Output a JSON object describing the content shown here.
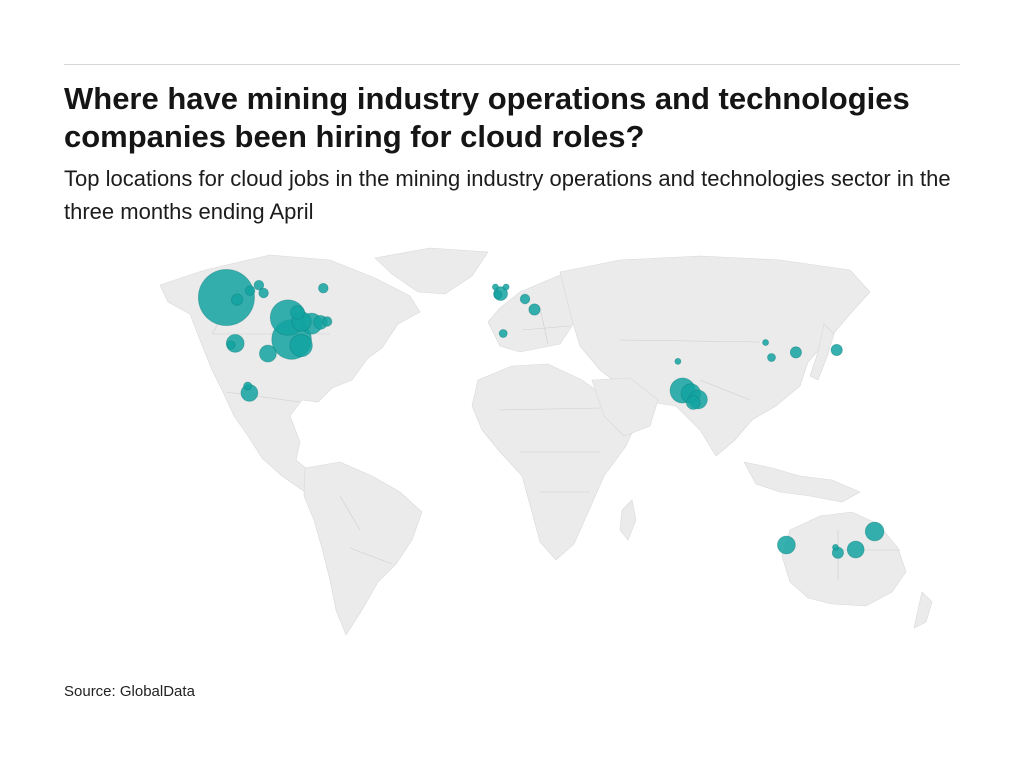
{
  "header": {
    "title": "Where have mining industry operations and technologies companies been hiring for cloud roles?",
    "subtitle": "Top locations for cloud jobs in the mining industry operations and technologies sector in the three months ending April"
  },
  "footer": {
    "source": "Source: GlobalData"
  },
  "colors": {
    "bubble": "#13a3a1",
    "land": "#ebebeb",
    "border": "#d9d9d9"
  },
  "chart_data": {
    "type": "scatter",
    "projection": "world-bubble-map",
    "locations": [
      {
        "lon": -120.5,
        "lat": 52.5,
        "value": 100
      },
      {
        "lon": -116.0,
        "lat": 51.8,
        "value": 4
      },
      {
        "lon": -110.5,
        "lat": 54.8,
        "value": 3
      },
      {
        "lon": -106.8,
        "lat": 56.6,
        "value": 3
      },
      {
        "lon": -104.8,
        "lat": 54.0,
        "value": 3
      },
      {
        "lon": -79.6,
        "lat": 55.6,
        "value": 3
      },
      {
        "lon": -94.5,
        "lat": 45.8,
        "value": 40
      },
      {
        "lon": -88.8,
        "lat": 44.5,
        "value": 12
      },
      {
        "lon": -84.6,
        "lat": 43.8,
        "value": 14
      },
      {
        "lon": -80.8,
        "lat": 44.2,
        "value": 6
      },
      {
        "lon": -90.5,
        "lat": 47.5,
        "value": 6
      },
      {
        "lon": -93.0,
        "lat": 38.5,
        "value": 50
      },
      {
        "lon": -89.0,
        "lat": 36.5,
        "value": 16
      },
      {
        "lon": -78.0,
        "lat": 44.5,
        "value": 3
      },
      {
        "lon": -116.8,
        "lat": 37.2,
        "value": 10
      },
      {
        "lon": -118.5,
        "lat": 36.7,
        "value": 2
      },
      {
        "lon": -103.0,
        "lat": 33.8,
        "value": 9
      },
      {
        "lon": -110.8,
        "lat": 20.7,
        "value": 9
      },
      {
        "lon": -111.5,
        "lat": 23.0,
        "value": 2
      },
      {
        "lon": -4.8,
        "lat": 53.8,
        "value": 6
      },
      {
        "lon": -6.0,
        "lat": 53.4,
        "value": 2
      },
      {
        "lon": -2.5,
        "lat": 56.0,
        "value": 1
      },
      {
        "lon": -7.0,
        "lat": 56.0,
        "value": 1
      },
      {
        "lon": 5.5,
        "lat": 52.0,
        "value": 3
      },
      {
        "lon": 9.5,
        "lat": 48.5,
        "value": 4
      },
      {
        "lon": -3.7,
        "lat": 40.5,
        "value": 2
      },
      {
        "lon": 137.0,
        "lat": 35.0,
        "value": 4
      },
      {
        "lon": 119.8,
        "lat": 34.2,
        "value": 4
      },
      {
        "lon": 109.5,
        "lat": 32.5,
        "value": 2
      },
      {
        "lon": 107.0,
        "lat": 37.5,
        "value": 1
      },
      {
        "lon": 72.0,
        "lat": 21.5,
        "value": 20
      },
      {
        "lon": 75.5,
        "lat": 20.5,
        "value": 12
      },
      {
        "lon": 78.5,
        "lat": 18.5,
        "value": 11
      },
      {
        "lon": 76.5,
        "lat": 17.5,
        "value": 6
      },
      {
        "lon": 70.0,
        "lat": 31.2,
        "value": 1
      },
      {
        "lon": 115.8,
        "lat": -30.0,
        "value": 10
      },
      {
        "lon": 137.5,
        "lat": -32.6,
        "value": 4
      },
      {
        "lon": 145.0,
        "lat": -31.5,
        "value": 9
      },
      {
        "lon": 153.0,
        "lat": -25.5,
        "value": 11
      },
      {
        "lon": 136.5,
        "lat": -30.8,
        "value": 1
      }
    ]
  }
}
